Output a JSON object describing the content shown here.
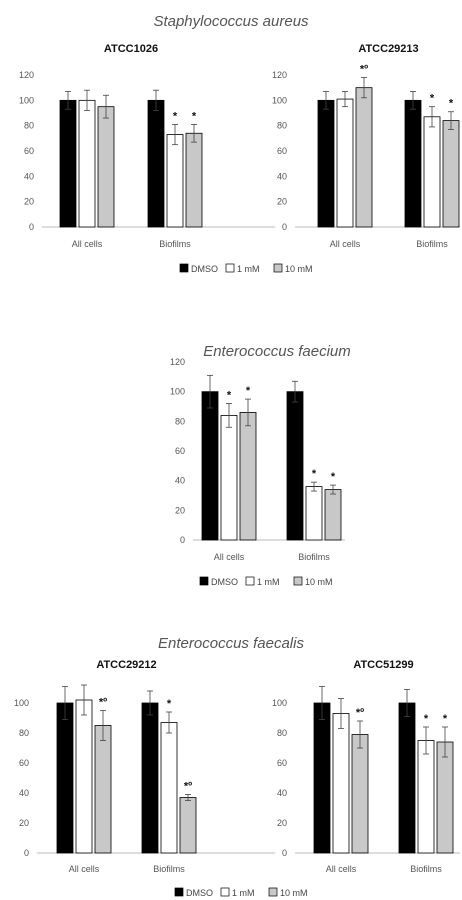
{
  "chart_data": [
    {
      "type": "bar",
      "title": "Staphylococcus aureus",
      "ylim": [
        0,
        120
      ],
      "yticks": [
        "0",
        "20",
        "40",
        "60",
        "80",
        "100",
        "120"
      ],
      "legend": {
        "position": "bottom",
        "entries": [
          "DMSO",
          "1 mM",
          "10 mM"
        ]
      },
      "series_colors": [
        "#000000",
        "#ffffff",
        "#c8c8c8"
      ],
      "panels": [
        {
          "subtitle": "ATCC1026",
          "groups": [
            {
              "label": "All cells",
              "values": [
                100,
                100,
                95
              ],
              "errors": [
                7,
                8,
                9
              ],
              "marks": [
                "",
                "",
                ""
              ]
            },
            {
              "label": "Biofilms",
              "values": [
                100,
                73,
                74
              ],
              "errors": [
                8,
                8,
                7
              ],
              "marks": [
                "",
                "*",
                "*"
              ]
            }
          ]
        },
        {
          "subtitle": "ATCC29213",
          "groups": [
            {
              "label": "All cells",
              "values": [
                100,
                101,
                110
              ],
              "errors": [
                7,
                6,
                8
              ],
              "marks": [
                "",
                "",
                "*º"
              ]
            },
            {
              "label": "Biofilms",
              "values": [
                100,
                87,
                84
              ],
              "errors": [
                7,
                8,
                7
              ],
              "marks": [
                "",
                "*",
                "*"
              ]
            }
          ]
        }
      ]
    },
    {
      "type": "bar",
      "title": "Enterococcus faecium",
      "ylim": [
        0,
        120
      ],
      "yticks": [
        "0",
        "20",
        "40",
        "60",
        "80",
        "100",
        "120"
      ],
      "legend": {
        "position": "bottom",
        "entries": [
          "DMSO",
          "1 mM",
          "10 mM"
        ]
      },
      "series_colors": [
        "#000000",
        "#ffffff",
        "#c8c8c8"
      ],
      "panels": [
        {
          "subtitle": "",
          "groups": [
            {
              "label": "All cells",
              "values": [
                100,
                84,
                86
              ],
              "errors": [
                11,
                8,
                9
              ],
              "marks": [
                "",
                "*",
                "*"
              ]
            },
            {
              "label": "Biofilms",
              "values": [
                100,
                36,
                34
              ],
              "errors": [
                7,
                3,
                3
              ],
              "marks": [
                "",
                "*",
                "*"
              ]
            }
          ]
        }
      ]
    },
    {
      "type": "bar",
      "title": "Enterococcus faecalis",
      "ylim": [
        0,
        120
      ],
      "yticks": [
        "0",
        "20",
        "40",
        "60",
        "80",
        "100"
      ],
      "legend": {
        "position": "bottom",
        "entries": [
          "DMSO",
          "1 mM",
          "10 mM"
        ]
      },
      "series_colors": [
        "#000000",
        "#ffffff",
        "#c8c8c8"
      ],
      "panels": [
        {
          "subtitle": "ATCC29212",
          "groups": [
            {
              "label": "All cells",
              "values": [
                100,
                102,
                85
              ],
              "errors": [
                11,
                10,
                10
              ],
              "marks": [
                "",
                "",
                "*º"
              ]
            },
            {
              "label": "Biofilms",
              "values": [
                100,
                87,
                37
              ],
              "errors": [
                8,
                7,
                2
              ],
              "marks": [
                "",
                "*",
                "*º"
              ]
            }
          ]
        },
        {
          "subtitle": "ATCC51299",
          "groups": [
            {
              "label": "All cells",
              "values": [
                100,
                93,
                79
              ],
              "errors": [
                11,
                10,
                9
              ],
              "marks": [
                "",
                "",
                "*º"
              ]
            },
            {
              "label": "Biofilms",
              "values": [
                100,
                75,
                74
              ],
              "errors": [
                9,
                9,
                10
              ],
              "marks": [
                "",
                "*",
                "*"
              ]
            }
          ]
        }
      ]
    }
  ]
}
